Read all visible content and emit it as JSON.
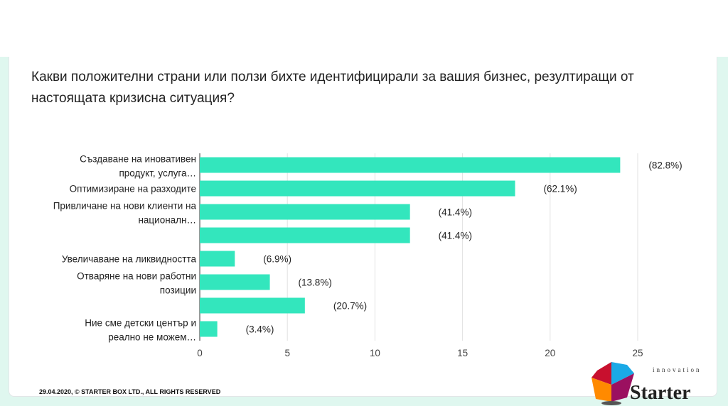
{
  "title": "Какви положителни страни или ползи бихте идентифицирали за вашия бизнес, резултиращи от настоящата кризисна ситуация?",
  "footer": "29.04.2020, © STARTER BOX LTD., ALL RIGHTS RESERVED",
  "logo": {
    "text": "Starter",
    "subtext": "innovation"
  },
  "colors": {
    "bar": "#33e6bd",
    "background": "#dff7ef"
  },
  "chart_data": {
    "type": "bar",
    "orientation": "horizontal",
    "title": "Какви положителни страни или ползи бихте идентифицирали за вашия бизнес, резултиращи от настоящата кризисна ситуация?",
    "categories": [
      [
        "Създаване на иновативен",
        "продукт, услуга…"
      ],
      [
        "Оптимизиране на разходите"
      ],
      [
        "Привличане на нови клиенти на",
        "националн…"
      ],
      [
        ""
      ],
      [
        "Увеличаване на ликвидността"
      ],
      [
        "Отваряне на нови работни",
        "позиции"
      ],
      [
        ""
      ],
      [
        "Ние сме детски център и",
        "реално не можем…"
      ]
    ],
    "values": [
      24,
      18,
      12,
      12,
      2,
      4,
      6,
      1
    ],
    "data_labels": [
      "(82.8%)",
      "(62.1%)",
      "(41.4%)",
      "(41.4%)",
      "(6.9%)",
      "(13.8%)",
      "(20.7%)",
      "(3.4%)"
    ],
    "xlim": [
      0,
      25
    ],
    "xticks": [
      "0",
      "5",
      "10",
      "15",
      "20",
      "25"
    ],
    "grid": true,
    "xlabel": "",
    "ylabel": ""
  }
}
